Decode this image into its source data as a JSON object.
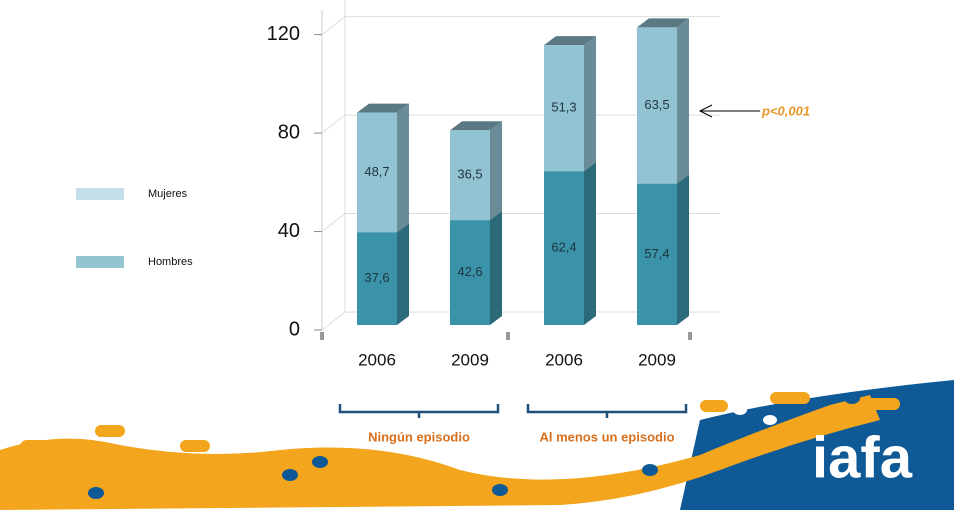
{
  "chart_data": {
    "type": "stacked_bar_3d",
    "categories": [
      "2006",
      "2009",
      "2006",
      "2009"
    ],
    "groups": [
      {
        "label": "Ningún episodio"
      },
      {
        "label": "Al menos un episodio"
      }
    ],
    "series": [
      {
        "name": "Hombres",
        "color": "#3a93a8",
        "values": [
          37.6,
          42.6,
          62.4,
          57.4
        ],
        "value_labels": [
          "37,6",
          "42,6",
          "62,4",
          "57,4"
        ]
      },
      {
        "name": "Mujeres",
        "color": "#92c3d3",
        "values": [
          48.7,
          36.5,
          51.3,
          63.5
        ],
        "value_labels": [
          "48,7",
          "36,5",
          "51,3",
          "63,5"
        ]
      }
    ],
    "ylim": [
      0,
      130
    ],
    "yticks": [
      0,
      40,
      80,
      120
    ],
    "grid": true,
    "annotation": "p<0,001",
    "logo": "iafa"
  }
}
